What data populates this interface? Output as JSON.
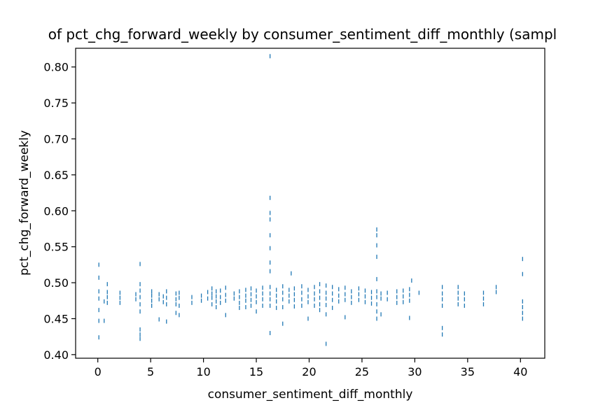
{
  "chart_data": {
    "type": "scatter",
    "title": "of pct_chg_forward_weekly by consumer_sentiment_diff_monthly (sampl",
    "xlabel": "consumer_sentiment_diff_monthly",
    "ylabel": "pct_chg_forward_weekly",
    "xlim": [
      -2.1,
      42.3
    ],
    "ylim": [
      0.395,
      0.826
    ],
    "xticks": [
      0,
      5,
      10,
      15,
      20,
      25,
      30,
      35,
      40
    ],
    "yticks": [
      0.4,
      0.45,
      0.5,
      0.55,
      0.6,
      0.65,
      0.7,
      0.75,
      0.8
    ],
    "xtick_labels": [
      "0",
      "5",
      "10",
      "15",
      "20",
      "25",
      "30",
      "35",
      "40"
    ],
    "ytick_labels": [
      "0.40",
      "0.45",
      "0.50",
      "0.55",
      "0.60",
      "0.65",
      "0.70",
      "0.75",
      "0.80"
    ],
    "marker": "|",
    "colors": {
      "points": "#1f77b4",
      "axes": "#000000"
    },
    "legend": false,
    "grid": false,
    "series": [
      {
        "points": [
          [
            0.1,
            0.525
          ],
          [
            0.1,
            0.507
          ],
          [
            0.1,
            0.488
          ],
          [
            0.1,
            0.478
          ],
          [
            0.1,
            0.462
          ],
          [
            0.1,
            0.447
          ],
          [
            0.1,
            0.424
          ],
          [
            0.6,
            0.474
          ],
          [
            0.6,
            0.447
          ],
          [
            0.9,
            0.498
          ],
          [
            0.9,
            0.487
          ],
          [
            0.9,
            0.48
          ],
          [
            0.9,
            0.472
          ],
          [
            2.1,
            0.486
          ],
          [
            2.1,
            0.479
          ],
          [
            2.1,
            0.472
          ],
          [
            3.6,
            0.484
          ],
          [
            3.6,
            0.477
          ],
          [
            4.0,
            0.526
          ],
          [
            4.0,
            0.498
          ],
          [
            4.0,
            0.489
          ],
          [
            4.0,
            0.48
          ],
          [
            4.0,
            0.47
          ],
          [
            4.0,
            0.46
          ],
          [
            4.0,
            0.435
          ],
          [
            4.0,
            0.428
          ],
          [
            4.0,
            0.422
          ],
          [
            5.1,
            0.488
          ],
          [
            5.1,
            0.482
          ],
          [
            5.1,
            0.475
          ],
          [
            5.1,
            0.468
          ],
          [
            5.8,
            0.484
          ],
          [
            5.8,
            0.477
          ],
          [
            5.8,
            0.449
          ],
          [
            6.2,
            0.481
          ],
          [
            6.2,
            0.473
          ],
          [
            6.5,
            0.488
          ],
          [
            6.5,
            0.479
          ],
          [
            6.5,
            0.47
          ],
          [
            6.5,
            0.446
          ],
          [
            7.4,
            0.485
          ],
          [
            7.4,
            0.477
          ],
          [
            7.4,
            0.47
          ],
          [
            7.4,
            0.458
          ],
          [
            7.7,
            0.486
          ],
          [
            7.7,
            0.479
          ],
          [
            7.7,
            0.468
          ],
          [
            7.7,
            0.455
          ],
          [
            8.9,
            0.48
          ],
          [
            8.9,
            0.472
          ],
          [
            9.8,
            0.482
          ],
          [
            9.8,
            0.475
          ],
          [
            10.4,
            0.487
          ],
          [
            10.4,
            0.478
          ],
          [
            10.8,
            0.492
          ],
          [
            10.8,
            0.485
          ],
          [
            10.8,
            0.479
          ],
          [
            10.8,
            0.47
          ],
          [
            11.2,
            0.488
          ],
          [
            11.2,
            0.481
          ],
          [
            11.2,
            0.474
          ],
          [
            11.2,
            0.466
          ],
          [
            11.6,
            0.489
          ],
          [
            11.6,
            0.48
          ],
          [
            11.6,
            0.472
          ],
          [
            12.1,
            0.493
          ],
          [
            12.1,
            0.483
          ],
          [
            12.1,
            0.475
          ],
          [
            12.1,
            0.455
          ],
          [
            12.9,
            0.485
          ],
          [
            12.9,
            0.478
          ],
          [
            13.4,
            0.488
          ],
          [
            13.4,
            0.48
          ],
          [
            13.4,
            0.472
          ],
          [
            13.4,
            0.465
          ],
          [
            14.0,
            0.49
          ],
          [
            14.0,
            0.482
          ],
          [
            14.0,
            0.475
          ],
          [
            14.0,
            0.466
          ],
          [
            14.5,
            0.492
          ],
          [
            14.5,
            0.484
          ],
          [
            14.5,
            0.476
          ],
          [
            14.5,
            0.468
          ],
          [
            15.0,
            0.489
          ],
          [
            15.0,
            0.481
          ],
          [
            15.0,
            0.473
          ],
          [
            15.0,
            0.46
          ],
          [
            15.6,
            0.493
          ],
          [
            15.6,
            0.485
          ],
          [
            15.6,
            0.477
          ],
          [
            15.6,
            0.468
          ],
          [
            16.3,
            0.815
          ],
          [
            16.3,
            0.618
          ],
          [
            16.3,
            0.597
          ],
          [
            16.3,
            0.588
          ],
          [
            16.3,
            0.566
          ],
          [
            16.3,
            0.548
          ],
          [
            16.3,
            0.528
          ],
          [
            16.3,
            0.516
          ],
          [
            16.3,
            0.494
          ],
          [
            16.3,
            0.485
          ],
          [
            16.3,
            0.477
          ],
          [
            16.3,
            0.468
          ],
          [
            16.3,
            0.43
          ],
          [
            16.9,
            0.49
          ],
          [
            16.9,
            0.482
          ],
          [
            16.9,
            0.474
          ],
          [
            16.9,
            0.465
          ],
          [
            17.5,
            0.495
          ],
          [
            17.5,
            0.486
          ],
          [
            17.5,
            0.477
          ],
          [
            17.5,
            0.466
          ],
          [
            17.5,
            0.443
          ],
          [
            18.1,
            0.49
          ],
          [
            18.1,
            0.482
          ],
          [
            18.1,
            0.474
          ],
          [
            18.3,
            0.513
          ],
          [
            18.6,
            0.492
          ],
          [
            18.6,
            0.484
          ],
          [
            18.6,
            0.476
          ],
          [
            18.6,
            0.467
          ],
          [
            19.3,
            0.495
          ],
          [
            19.3,
            0.486
          ],
          [
            19.3,
            0.477
          ],
          [
            19.3,
            0.468
          ],
          [
            19.9,
            0.49
          ],
          [
            19.9,
            0.481
          ],
          [
            19.9,
            0.473
          ],
          [
            19.9,
            0.45
          ],
          [
            20.5,
            0.494
          ],
          [
            20.5,
            0.485
          ],
          [
            20.5,
            0.477
          ],
          [
            20.5,
            0.468
          ],
          [
            21.0,
            0.498
          ],
          [
            21.0,
            0.488
          ],
          [
            21.0,
            0.479
          ],
          [
            21.0,
            0.47
          ],
          [
            21.0,
            0.462
          ],
          [
            21.6,
            0.496
          ],
          [
            21.6,
            0.486
          ],
          [
            21.6,
            0.478
          ],
          [
            21.6,
            0.469
          ],
          [
            21.6,
            0.456
          ],
          [
            21.6,
            0.415
          ],
          [
            22.2,
            0.494
          ],
          [
            22.2,
            0.485
          ],
          [
            22.2,
            0.476
          ],
          [
            22.2,
            0.465
          ],
          [
            22.8,
            0.491
          ],
          [
            22.8,
            0.482
          ],
          [
            22.8,
            0.474
          ],
          [
            23.4,
            0.493
          ],
          [
            23.4,
            0.484
          ],
          [
            23.4,
            0.476
          ],
          [
            23.4,
            0.452
          ],
          [
            24.0,
            0.488
          ],
          [
            24.0,
            0.48
          ],
          [
            24.0,
            0.472
          ],
          [
            24.7,
            0.492
          ],
          [
            24.7,
            0.484
          ],
          [
            24.7,
            0.476
          ],
          [
            25.3,
            0.489
          ],
          [
            25.3,
            0.481
          ],
          [
            25.3,
            0.473
          ],
          [
            25.9,
            0.487
          ],
          [
            25.9,
            0.479
          ],
          [
            25.9,
            0.471
          ],
          [
            26.4,
            0.574
          ],
          [
            26.4,
            0.566
          ],
          [
            26.4,
            0.552
          ],
          [
            26.4,
            0.536
          ],
          [
            26.4,
            0.505
          ],
          [
            26.4,
            0.488
          ],
          [
            26.4,
            0.48
          ],
          [
            26.4,
            0.47
          ],
          [
            26.4,
            0.46
          ],
          [
            26.4,
            0.45
          ],
          [
            26.8,
            0.485
          ],
          [
            26.8,
            0.478
          ],
          [
            26.8,
            0.456
          ],
          [
            27.4,
            0.486
          ],
          [
            27.4,
            0.477
          ],
          [
            28.3,
            0.488
          ],
          [
            28.3,
            0.48
          ],
          [
            28.3,
            0.472
          ],
          [
            28.9,
            0.489
          ],
          [
            28.9,
            0.481
          ],
          [
            28.9,
            0.473
          ],
          [
            29.5,
            0.491
          ],
          [
            29.5,
            0.483
          ],
          [
            29.5,
            0.475
          ],
          [
            29.5,
            0.451
          ],
          [
            29.7,
            0.503
          ],
          [
            30.4,
            0.486
          ],
          [
            32.6,
            0.494
          ],
          [
            32.6,
            0.485
          ],
          [
            32.6,
            0.477
          ],
          [
            32.6,
            0.468
          ],
          [
            32.6,
            0.437
          ],
          [
            32.6,
            0.428
          ],
          [
            34.1,
            0.494
          ],
          [
            34.1,
            0.486
          ],
          [
            34.1,
            0.478
          ],
          [
            34.1,
            0.47
          ],
          [
            34.7,
            0.485
          ],
          [
            34.7,
            0.477
          ],
          [
            34.7,
            0.468
          ],
          [
            36.5,
            0.486
          ],
          [
            36.5,
            0.478
          ],
          [
            36.5,
            0.47
          ],
          [
            37.7,
            0.494
          ],
          [
            37.7,
            0.487
          ],
          [
            40.2,
            0.533
          ],
          [
            40.2,
            0.512
          ],
          [
            40.2,
            0.474
          ],
          [
            40.2,
            0.466
          ],
          [
            40.2,
            0.458
          ],
          [
            40.2,
            0.45
          ]
        ]
      }
    ]
  }
}
